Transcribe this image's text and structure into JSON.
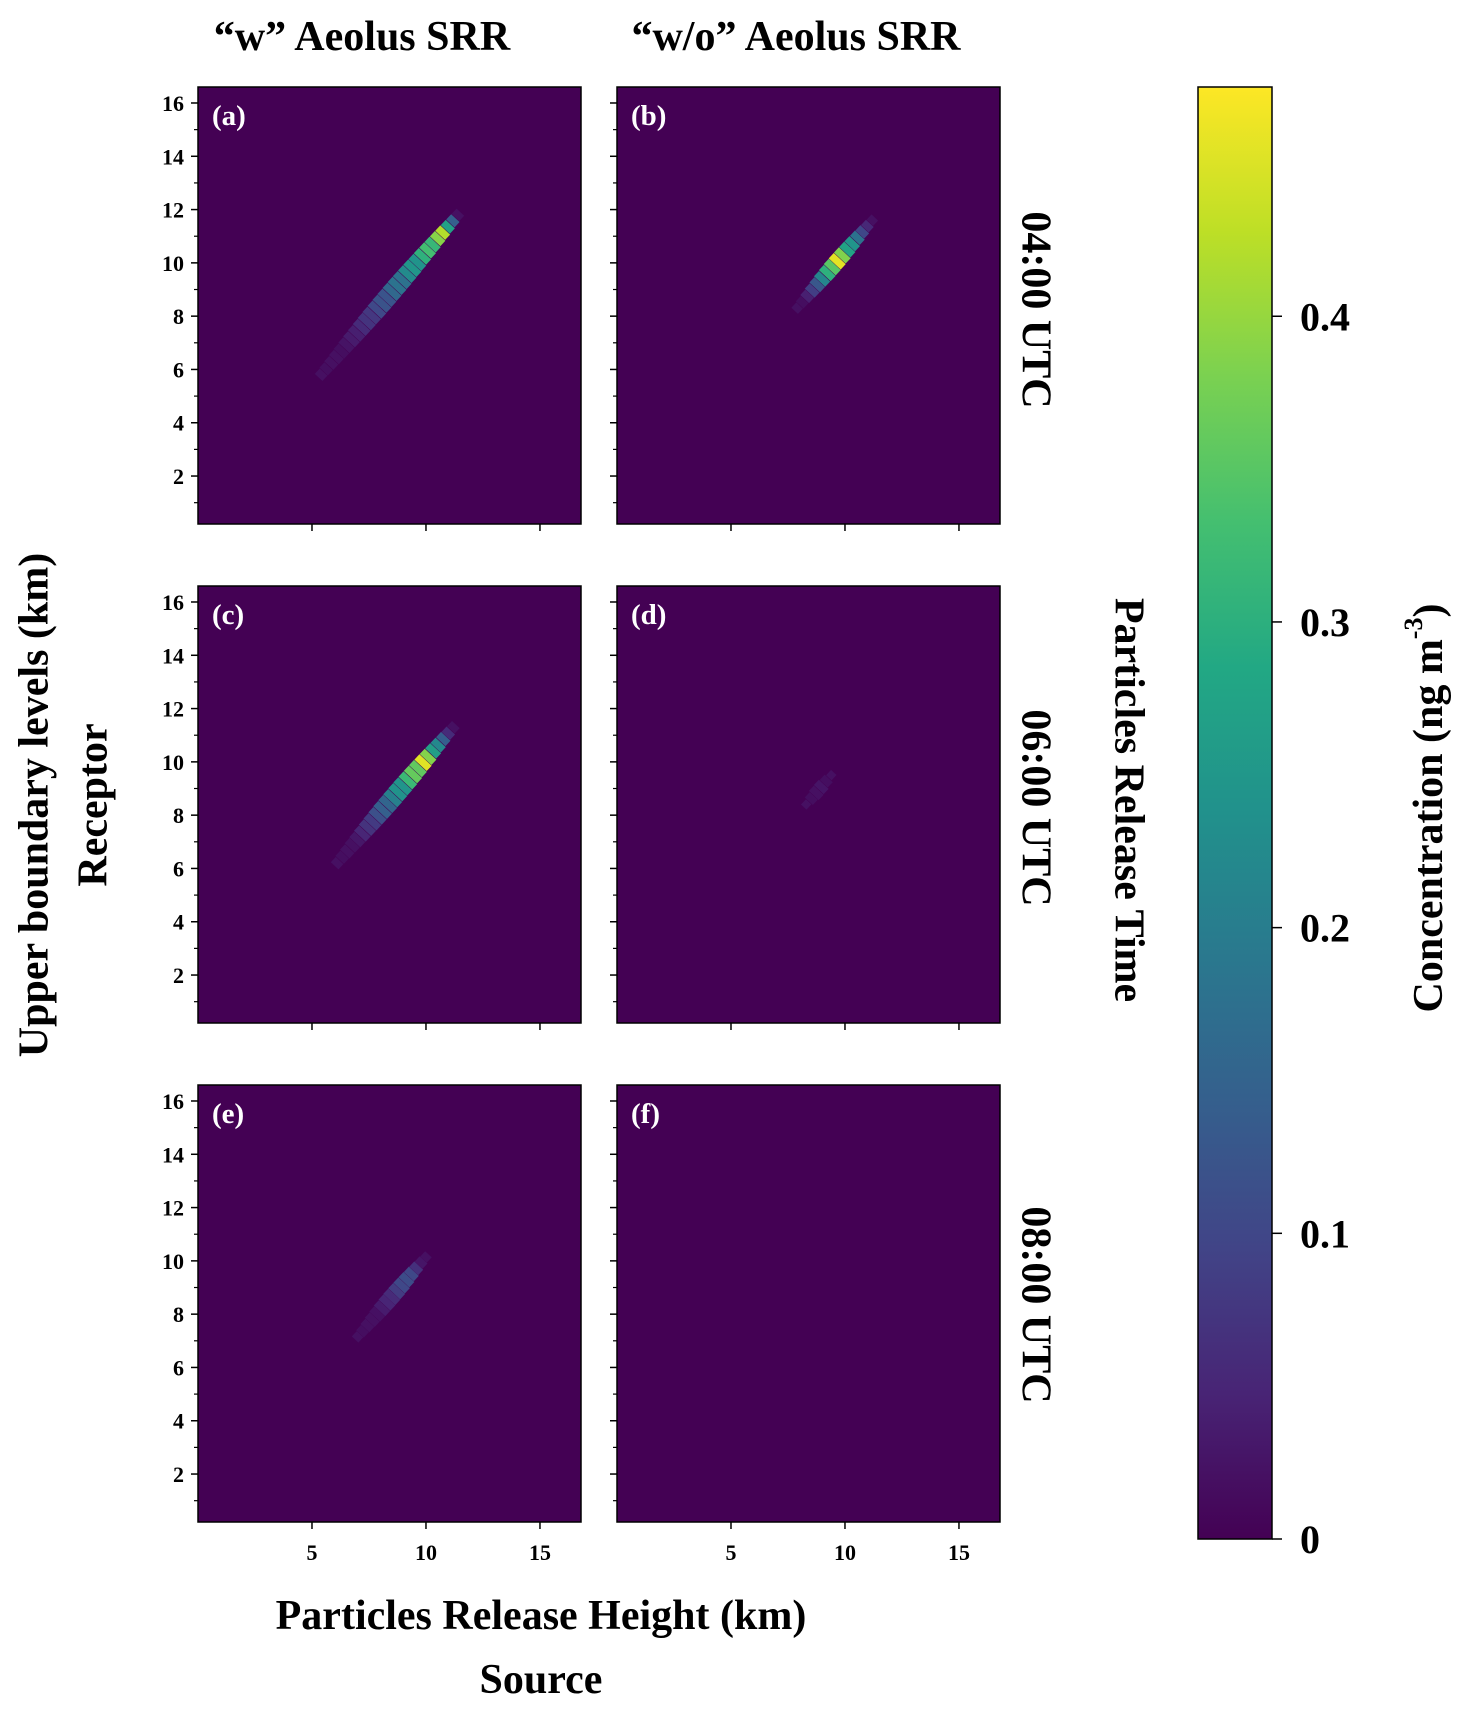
{
  "figure": {
    "column_titles": [
      "“w” Aeolus SRR",
      "“w/o” Aeolus SRR"
    ],
    "row_titles": [
      "04:00 UTC",
      "06:00 UTC",
      "08:00 UTC"
    ],
    "row_group_label": "Particles Release Time",
    "xlabel": "Particles Release Height (km)",
    "xlabel_sub": "Source",
    "ylabel": "Upper boundary levels (km)",
    "ylabel_sub": "Receptor",
    "colorbar": {
      "label_main": "Concentration (ng m",
      "label_sup": "-3",
      "label_close": ")",
      "ticks": [
        "0",
        "0.1",
        "0.2",
        "0.3",
        "0.4"
      ],
      "tick_values": [
        0,
        0.1,
        0.2,
        0.3,
        0.4
      ],
      "range": [
        0,
        0.475
      ],
      "colormap": "viridis"
    },
    "background_color": "#440154"
  },
  "chart_data": {
    "type": "heatmap",
    "x_range": [
      0,
      16.8
    ],
    "y_range": [
      0.2,
      16.6
    ],
    "x_ticks": [
      5,
      10,
      15
    ],
    "x_tick_labels": [
      "5",
      "10",
      "15"
    ],
    "y_ticks": [
      2,
      4,
      6,
      8,
      10,
      12,
      14,
      16
    ],
    "y_tick_labels": [
      "2",
      "4",
      "6",
      "8",
      "10",
      "12",
      "14",
      "16"
    ],
    "grid": false,
    "panels": [
      {
        "label": "(a)",
        "column": 0,
        "row": 0,
        "streak": {
          "x_start": 5.4,
          "x_end": 11.4,
          "y_offset": 0.4,
          "peak_x": 10.8,
          "peak_value": 0.43,
          "width_km": 0.35
        }
      },
      {
        "label": "(b)",
        "column": 1,
        "row": 0,
        "streak": {
          "x_start": 7.9,
          "x_end": 11.2,
          "y_offset": 0.4,
          "peak_x": 9.6,
          "peak_value": 0.475,
          "width_km": 0.3
        }
      },
      {
        "label": "(c)",
        "column": 0,
        "row": 1,
        "streak": {
          "x_start": 6.1,
          "x_end": 11.2,
          "y_offset": 0.1,
          "peak_x": 9.9,
          "peak_value": 0.46,
          "width_km": 0.35
        }
      },
      {
        "label": "(d)",
        "column": 1,
        "row": 1,
        "streak": {
          "x_start": 8.3,
          "x_end": 9.4,
          "y_offset": 0.1,
          "peak_x": 8.9,
          "peak_value": 0.03,
          "width_km": 0.25
        }
      },
      {
        "label": "(e)",
        "column": 0,
        "row": 2,
        "streak": {
          "x_start": 7.0,
          "x_end": 10.0,
          "y_offset": 0.15,
          "peak_x": 9.2,
          "peak_value": 0.13,
          "width_km": 0.3
        }
      },
      {
        "label": "(f)",
        "column": 1,
        "row": 2,
        "streak": null
      }
    ]
  }
}
